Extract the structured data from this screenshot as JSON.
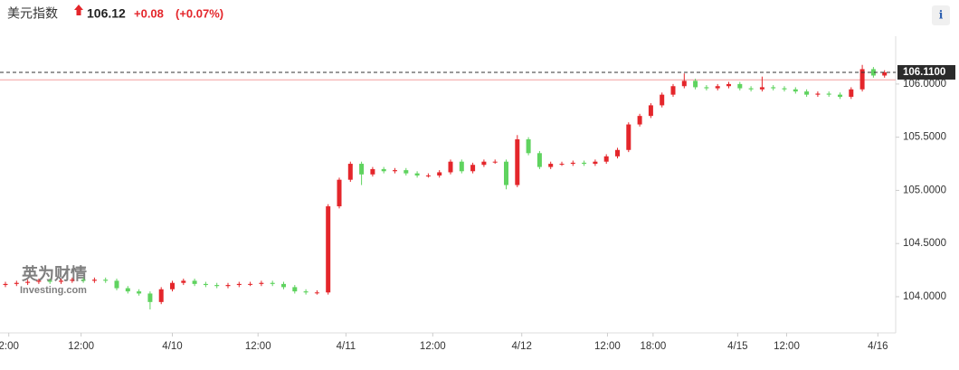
{
  "chart_data": {
    "type": "candlestick",
    "title": "美元指数",
    "price": "106.12",
    "change": "+0.08",
    "change_percent": "(+0.07%)",
    "watermark": "英为财情",
    "watermark_sub": "Investing.com",
    "info_button": "i",
    "up_color": "#e4262b",
    "down_color": "#5fd35f",
    "current_price": {
      "value": 106.11,
      "label": "106.1100"
    },
    "reference_line": 106.04,
    "ylim": [
      103.685,
      106.45
    ],
    "yticks": [
      {
        "value": 104,
        "label": "104.0000"
      },
      {
        "value": 104.5,
        "label": "104.5000"
      },
      {
        "value": 105,
        "label": "105.0000"
      },
      {
        "value": 105.5,
        "label": "105.5000"
      },
      {
        "value": 106,
        "label": "106.0000"
      }
    ],
    "xticks": [
      {
        "value": 0.3,
        "label": "2:00"
      },
      {
        "value": 6.8,
        "label": "12:00"
      },
      {
        "value": 15.0,
        "label": "4/10"
      },
      {
        "value": 22.7,
        "label": "12:00"
      },
      {
        "value": 30.6,
        "label": "4/11"
      },
      {
        "value": 38.4,
        "label": "12:00"
      },
      {
        "value": 46.4,
        "label": "4/12"
      },
      {
        "value": 54.1,
        "label": "12:00"
      },
      {
        "value": 58.2,
        "label": "18:00"
      },
      {
        "value": 65.8,
        "label": "4/15"
      },
      {
        "value": 70.2,
        "label": "12:00"
      },
      {
        "value": 78.4,
        "label": "4/16"
      }
    ],
    "open": [
      104.11,
      104.12,
      104.13,
      104.14,
      104.15,
      104.14,
      104.15,
      104.16,
      104.15,
      104.16,
      104.15,
      104.08,
      104.05,
      104.03,
      103.95,
      104.07,
      104.13,
      104.15,
      104.12,
      104.11,
      104.1,
      104.11,
      104.12,
      104.12,
      104.13,
      104.12,
      104.09,
      104.05,
      104.04,
      104.04,
      104.85,
      105.1,
      105.25,
      105.15,
      105.2,
      105.18,
      105.19,
      105.16,
      105.14,
      105.14,
      105.17,
      105.27,
      105.18,
      105.24,
      105.27,
      105.27,
      105.05,
      105.48,
      105.35,
      105.22,
      105.25,
      105.25,
      105.26,
      105.25,
      105.27,
      105.32,
      105.38,
      105.62,
      105.7,
      105.8,
      105.9,
      105.98,
      106.03,
      105.97,
      105.96,
      105.98,
      106.0,
      105.96,
      105.95,
      105.97,
      105.96,
      105.95,
      105.93,
      105.9,
      105.91,
      105.9,
      105.88,
      105.95,
      106.14,
      106.08
    ],
    "high": [
      104.14,
      104.15,
      104.16,
      104.17,
      104.17,
      104.17,
      104.18,
      104.18,
      104.18,
      104.18,
      104.17,
      104.1,
      104.07,
      104.05,
      104.09,
      104.15,
      104.17,
      104.17,
      104.14,
      104.13,
      104.13,
      104.14,
      104.14,
      104.15,
      104.15,
      104.14,
      104.11,
      104.07,
      104.06,
      104.87,
      105.12,
      105.27,
      105.27,
      105.22,
      105.22,
      105.21,
      105.21,
      105.18,
      105.16,
      105.19,
      105.29,
      105.29,
      105.26,
      105.29,
      105.29,
      105.29,
      105.52,
      105.5,
      105.37,
      105.27,
      105.27,
      105.28,
      105.28,
      105.29,
      105.34,
      105.4,
      105.64,
      105.72,
      105.82,
      105.92,
      106.0,
      106.1,
      106.05,
      105.99,
      106.0,
      106.02,
      106.02,
      105.98,
      106.07,
      105.99,
      105.98,
      105.97,
      105.95,
      105.93,
      105.93,
      105.92,
      105.97,
      106.18,
      106.16,
      106.13
    ],
    "low": [
      104.09,
      104.1,
      104.11,
      104.12,
      104.12,
      104.12,
      104.13,
      104.13,
      104.13,
      104.13,
      104.06,
      104.03,
      104.01,
      103.88,
      103.93,
      104.05,
      104.11,
      104.1,
      104.09,
      104.08,
      104.08,
      104.09,
      104.1,
      104.1,
      104.1,
      104.07,
      104.03,
      104.02,
      104.02,
      104.02,
      104.83,
      105.08,
      105.05,
      105.13,
      105.16,
      105.16,
      105.14,
      105.12,
      105.12,
      105.12,
      105.15,
      105.16,
      105.16,
      105.22,
      105.25,
      105.01,
      105.03,
      105.33,
      105.2,
      105.2,
      105.23,
      105.23,
      105.23,
      105.23,
      105.25,
      105.3,
      105.36,
      105.6,
      105.68,
      105.78,
      105.88,
      105.96,
      105.95,
      105.94,
      105.94,
      105.96,
      105.94,
      105.93,
      105.93,
      105.94,
      105.93,
      105.91,
      105.88,
      105.88,
      105.88,
      105.86,
      105.86,
      105.93,
      106.06,
      106.06
    ],
    "close": [
      104.12,
      104.13,
      104.14,
      104.15,
      104.14,
      104.15,
      104.16,
      104.15,
      104.16,
      104.15,
      104.08,
      104.05,
      104.03,
      103.95,
      104.07,
      104.13,
      104.15,
      104.12,
      104.11,
      104.1,
      104.11,
      104.12,
      104.12,
      104.13,
      104.12,
      104.09,
      104.05,
      104.04,
      104.04,
      104.85,
      105.1,
      105.25,
      105.15,
      105.2,
      105.18,
      105.19,
      105.16,
      105.14,
      105.14,
      105.17,
      105.27,
      105.18,
      105.24,
      105.27,
      105.27,
      105.05,
      105.48,
      105.35,
      105.22,
      105.25,
      105.25,
      105.26,
      105.25,
      105.27,
      105.32,
      105.38,
      105.62,
      105.7,
      105.8,
      105.9,
      105.98,
      106.03,
      105.97,
      105.96,
      105.98,
      106.0,
      105.96,
      105.95,
      105.97,
      105.96,
      105.95,
      105.93,
      105.9,
      105.91,
      105.9,
      105.88,
      105.95,
      106.14,
      106.08,
      106.11
    ]
  }
}
